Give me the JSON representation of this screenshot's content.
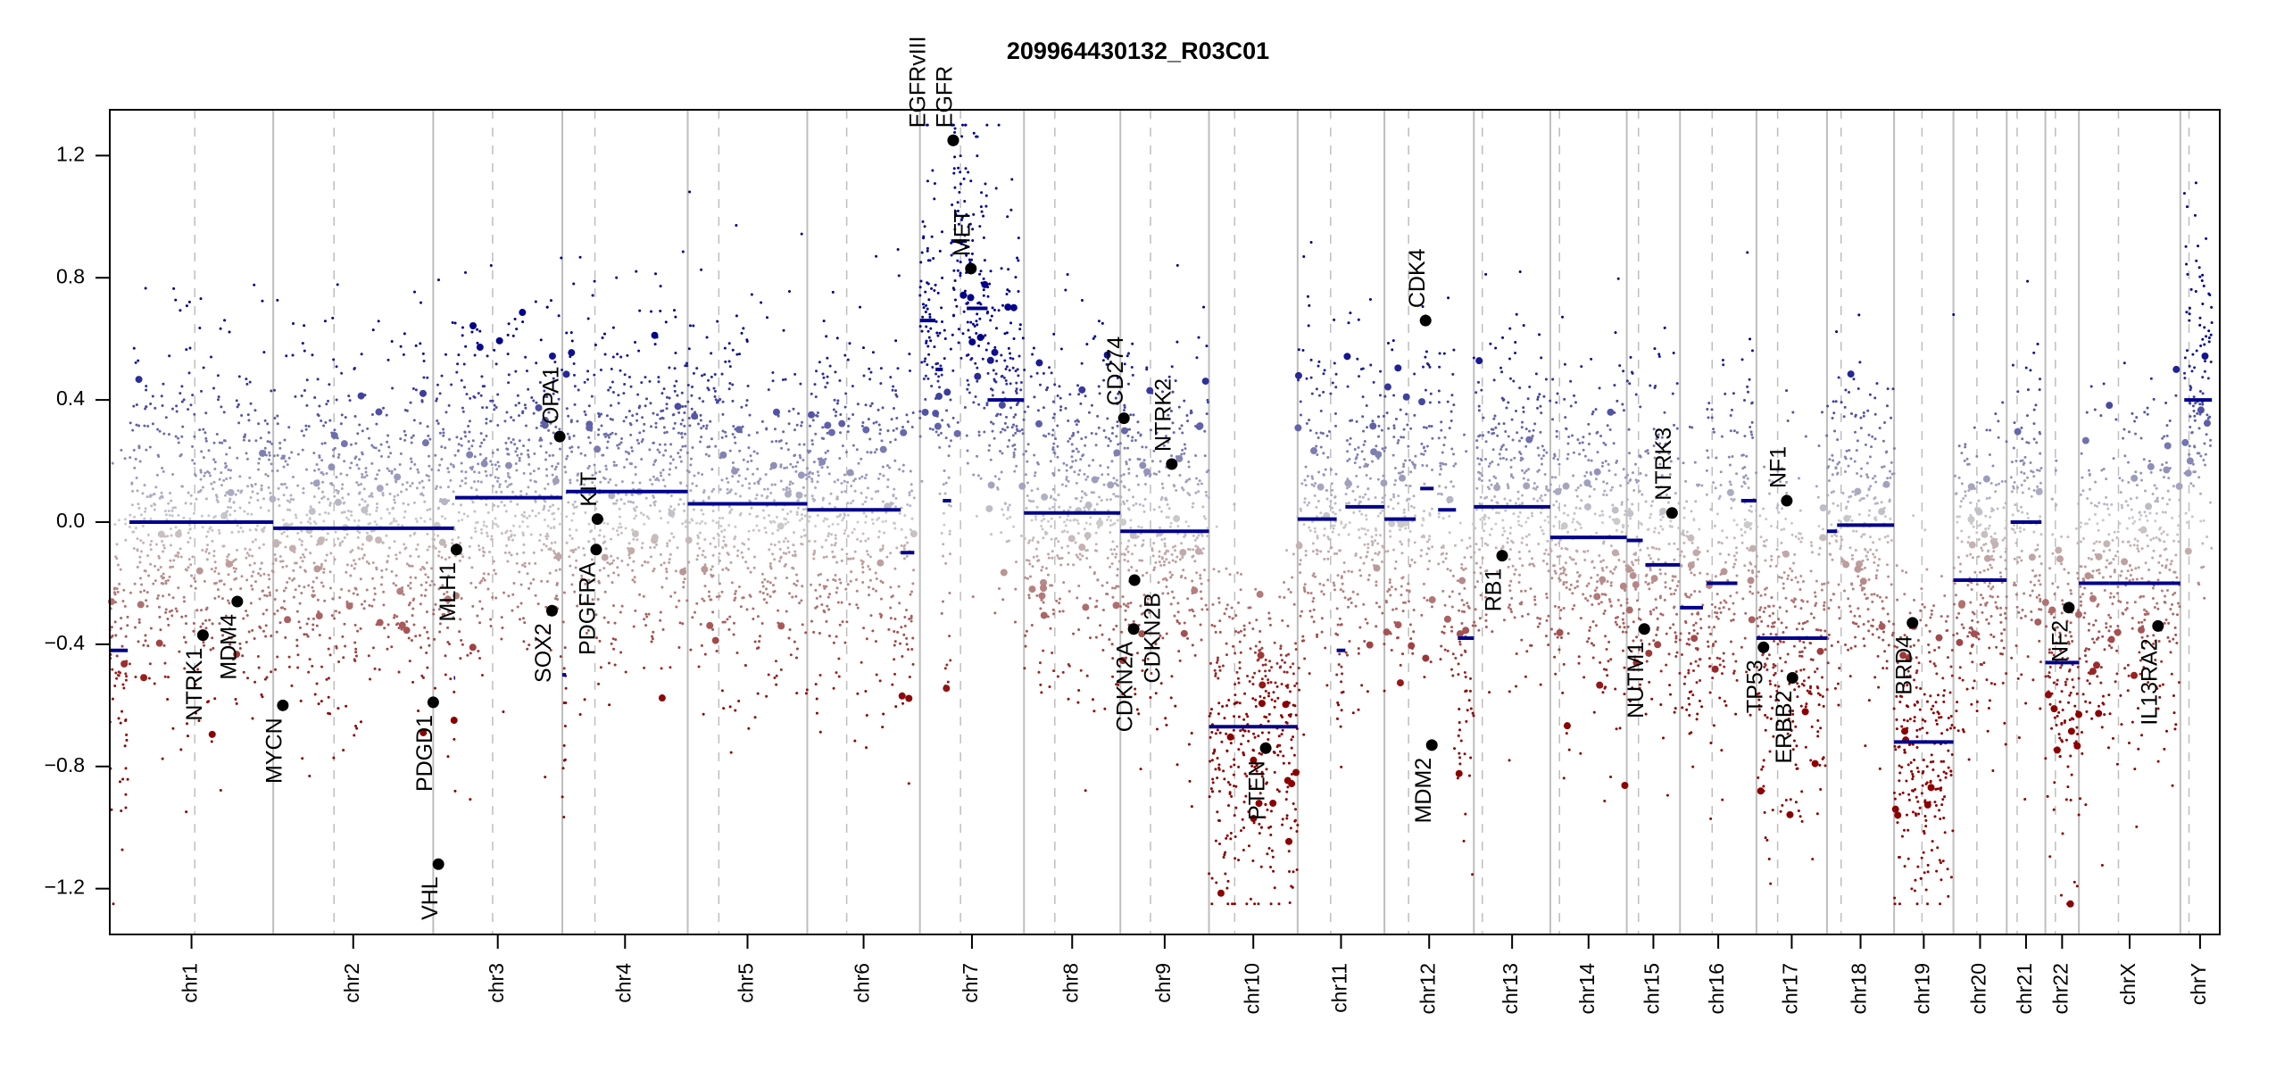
{
  "chart_data": {
    "type": "scatter",
    "title": "209964430132_R03C01",
    "xlabel": "",
    "ylabel": "",
    "ylim": [
      -1.35,
      1.35
    ],
    "yticks": [
      1.2,
      0.8,
      0.4,
      0.0,
      -0.4,
      -0.8,
      -1.2
    ],
    "ytick_labels": [
      "1.2",
      "0.8",
      "0.4",
      "0.0",
      "−0.4",
      "−0.8",
      "−1.2"
    ],
    "grid": false,
    "colors": {
      "gain": "#00008b",
      "loss": "#8b0000",
      "neutral": "#cccccc",
      "segment": "#00008b",
      "gene": "#000000",
      "boundary": "#bebebe"
    },
    "chromosomes": [
      {
        "name": "chr1",
        "rel_size": 0.0804,
        "centromere": 0.52
      },
      {
        "name": "chr2",
        "rel_size": 0.0787,
        "centromere": 0.38
      },
      {
        "name": "chr3",
        "rel_size": 0.0635,
        "centromere": 0.46
      },
      {
        "name": "chr4",
        "rel_size": 0.0617,
        "centromere": 0.26
      },
      {
        "name": "chr5",
        "rel_size": 0.0588,
        "centromere": 0.26
      },
      {
        "name": "chr6",
        "rel_size": 0.0554,
        "centromere": 0.35
      },
      {
        "name": "chr7",
        "rel_size": 0.0512,
        "centromere": 0.39
      },
      {
        "name": "chr8",
        "rel_size": 0.0474,
        "centromere": 0.32
      },
      {
        "name": "chr9",
        "rel_size": 0.0436,
        "centromere": 0.34
      },
      {
        "name": "chr10",
        "rel_size": 0.0436,
        "centromere": 0.29
      },
      {
        "name": "chr11",
        "rel_size": 0.0427,
        "centromere": 0.38
      },
      {
        "name": "chr12",
        "rel_size": 0.044,
        "centromere": 0.27
      },
      {
        "name": "chr13",
        "rel_size": 0.0376,
        "centromere": 0.11
      },
      {
        "name": "chr14",
        "rel_size": 0.0376,
        "centromere": 0.12
      },
      {
        "name": "chr15",
        "rel_size": 0.0262,
        "centromere": 0.22
      },
      {
        "name": "chr16",
        "rel_size": 0.0376,
        "centromere": 0.42
      },
      {
        "name": "chr17",
        "rel_size": 0.0347,
        "centromere": 0.3
      },
      {
        "name": "chr18",
        "rel_size": 0.033,
        "centromere": 0.21
      },
      {
        "name": "chr19",
        "rel_size": 0.0292,
        "centromere": 0.47
      },
      {
        "name": "chr20",
        "rel_size": 0.0262,
        "centromere": 0.44
      },
      {
        "name": "chr21",
        "rel_size": 0.019,
        "centromere": 0.27
      },
      {
        "name": "chr22",
        "rel_size": 0.0165,
        "centromere": 0.3
      },
      {
        "name": "chrX",
        "rel_size": 0.0499,
        "centromere": 0.39
      },
      {
        "name": "chrY",
        "rel_size": 0.0194,
        "centromere": 0.22
      }
    ],
    "segments": [
      {
        "chr": "chr1",
        "start": 0.0,
        "end": 0.11,
        "value": -0.42
      },
      {
        "chr": "chr1",
        "start": 0.12,
        "end": 1.0,
        "value": 0.0
      },
      {
        "chr": "chr2",
        "start": 0.0,
        "end": 1.0,
        "value": -0.02
      },
      {
        "chr": "chr3",
        "start": 0.0,
        "end": 0.16,
        "value": -0.02
      },
      {
        "chr": "chr3",
        "start": 0.16,
        "end": 0.17,
        "value": -0.51
      },
      {
        "chr": "chr3",
        "start": 0.17,
        "end": 1.0,
        "value": 0.08
      },
      {
        "chr": "chr4",
        "start": 0.0,
        "end": 0.03,
        "value": -0.5
      },
      {
        "chr": "chr4",
        "start": 0.03,
        "end": 1.0,
        "value": 0.1
      },
      {
        "chr": "chr5",
        "start": 0.0,
        "end": 1.0,
        "value": 0.06
      },
      {
        "chr": "chr6",
        "start": 0.0,
        "end": 0.83,
        "value": 0.04
      },
      {
        "chr": "chr6",
        "start": 0.83,
        "end": 0.95,
        "value": -0.1
      },
      {
        "chr": "chr7",
        "start": 0.0,
        "end": 0.15,
        "value": 0.66
      },
      {
        "chr": "chr7",
        "start": 0.15,
        "end": 0.22,
        "value": 0.5
      },
      {
        "chr": "chr7",
        "start": 0.22,
        "end": 0.3,
        "value": 0.07
      },
      {
        "chr": "chr7",
        "start": 0.3,
        "end": 0.45,
        "value": 0.92
      },
      {
        "chr": "chr7",
        "start": 0.45,
        "end": 0.65,
        "value": 0.7
      },
      {
        "chr": "chr7",
        "start": 0.65,
        "end": 1.0,
        "value": 0.4
      },
      {
        "chr": "chr8",
        "start": 0.0,
        "end": 1.0,
        "value": 0.03
      },
      {
        "chr": "chr9",
        "start": 0.0,
        "end": 1.0,
        "value": -0.03
      },
      {
        "chr": "chr10",
        "start": 0.0,
        "end": 1.0,
        "value": -0.67
      },
      {
        "chr": "chr11",
        "start": 0.0,
        "end": 0.45,
        "value": 0.01
      },
      {
        "chr": "chr11",
        "start": 0.45,
        "end": 0.55,
        "value": -0.42
      },
      {
        "chr": "chr11",
        "start": 0.55,
        "end": 1.0,
        "value": 0.05
      },
      {
        "chr": "chr12",
        "start": 0.0,
        "end": 0.35,
        "value": 0.01
      },
      {
        "chr": "chr12",
        "start": 0.4,
        "end": 0.55,
        "value": 0.11
      },
      {
        "chr": "chr12",
        "start": 0.6,
        "end": 0.8,
        "value": 0.04
      },
      {
        "chr": "chr12",
        "start": 0.82,
        "end": 1.0,
        "value": -0.38
      },
      {
        "chr": "chr13",
        "start": 0.0,
        "end": 1.0,
        "value": 0.05
      },
      {
        "chr": "chr14",
        "start": 0.0,
        "end": 1.0,
        "value": -0.05
      },
      {
        "chr": "chr15",
        "start": 0.0,
        "end": 0.3,
        "value": -0.06
      },
      {
        "chr": "chr15",
        "start": 0.35,
        "end": 1.0,
        "value": -0.14
      },
      {
        "chr": "chr16",
        "start": 0.0,
        "end": 0.3,
        "value": -0.28
      },
      {
        "chr": "chr16",
        "start": 0.35,
        "end": 0.75,
        "value": -0.2
      },
      {
        "chr": "chr16",
        "start": 0.8,
        "end": 1.0,
        "value": 0.07
      },
      {
        "chr": "chr17",
        "start": 0.0,
        "end": 1.0,
        "value": -0.38
      },
      {
        "chr": "chr18",
        "start": 0.0,
        "end": 0.15,
        "value": -0.03
      },
      {
        "chr": "chr18",
        "start": 0.15,
        "end": 1.0,
        "value": -0.01
      },
      {
        "chr": "chr19",
        "start": 0.0,
        "end": 1.0,
        "value": -0.72
      },
      {
        "chr": "chr20",
        "start": 0.0,
        "end": 1.0,
        "value": -0.19
      },
      {
        "chr": "chr21",
        "start": 0.1,
        "end": 0.9,
        "value": 0.0
      },
      {
        "chr": "chr22",
        "start": 0.0,
        "end": 1.0,
        "value": -0.46
      },
      {
        "chr": "chrX",
        "start": 0.0,
        "end": 0.3,
        "value": -0.2
      },
      {
        "chr": "chrX",
        "start": 0.3,
        "end": 1.0,
        "value": -0.2
      },
      {
        "chr": "chrY",
        "start": 0.1,
        "end": 0.8,
        "value": 0.4
      }
    ],
    "genes": [
      {
        "name": "NTRK1",
        "chr": "chr1",
        "pos": 0.57,
        "value": -0.37
      },
      {
        "name": "MDM4",
        "chr": "chr1",
        "pos": 0.78,
        "value": -0.26
      },
      {
        "name": "MYCN",
        "chr": "chr2",
        "pos": 0.06,
        "value": -0.6
      },
      {
        "name": "PDGD1",
        "chr": "chr3",
        "pos": 0.0,
        "value": -0.59
      },
      {
        "name": "VHL",
        "chr": "chr3",
        "pos": 0.04,
        "value": -1.12
      },
      {
        "name": "MLH1",
        "chr": "chr3",
        "pos": 0.18,
        "value": -0.09
      },
      {
        "name": "SOX2",
        "chr": "chr3",
        "pos": 0.92,
        "value": -0.29
      },
      {
        "name": "OPA1",
        "chr": "chr3",
        "pos": 0.98,
        "value": 0.28
      },
      {
        "name": "PDGFRA",
        "chr": "chr4",
        "pos": 0.27,
        "value": -0.09
      },
      {
        "name": "KIT",
        "chr": "chr4",
        "pos": 0.28,
        "value": 0.01
      },
      {
        "name": "EGFR",
        "chr": "chr7",
        "pos": 0.32,
        "value": 1.25
      },
      {
        "name": "EGFRvIII",
        "chr": "chr7",
        "pos": 0.32,
        "value": 1.25
      },
      {
        "name": "MET",
        "chr": "chr7",
        "pos": 0.49,
        "value": 0.83
      },
      {
        "name": "CD274",
        "chr": "chr9",
        "pos": 0.04,
        "value": 0.34
      },
      {
        "name": "CDKN2A",
        "chr": "chr9",
        "pos": 0.15,
        "value": -0.35
      },
      {
        "name": "CDKN2B",
        "chr": "chr9",
        "pos": 0.16,
        "value": -0.19
      },
      {
        "name": "NTRK2",
        "chr": "chr9",
        "pos": 0.58,
        "value": 0.19
      },
      {
        "name": "PTEN",
        "chr": "chr10",
        "pos": 0.64,
        "value": -0.74
      },
      {
        "name": "CDK4",
        "chr": "chr12",
        "pos": 0.46,
        "value": 0.66
      },
      {
        "name": "MDM2",
        "chr": "chr12",
        "pos": 0.53,
        "value": -0.73
      },
      {
        "name": "RB1",
        "chr": "chr13",
        "pos": 0.37,
        "value": -0.11
      },
      {
        "name": "NUTM1",
        "chr": "chr15",
        "pos": 0.33,
        "value": -0.35
      },
      {
        "name": "NTRK3",
        "chr": "chr15",
        "pos": 0.85,
        "value": 0.03
      },
      {
        "name": "TP53",
        "chr": "chr17",
        "pos": 0.1,
        "value": -0.41
      },
      {
        "name": "NF1",
        "chr": "chr17",
        "pos": 0.43,
        "value": 0.07
      },
      {
        "name": "ERBB2",
        "chr": "chr17",
        "pos": 0.51,
        "value": -0.51
      },
      {
        "name": "BRD4",
        "chr": "chr19",
        "pos": 0.31,
        "value": -0.33
      },
      {
        "name": "NF2",
        "chr": "chr22",
        "pos": 0.7,
        "value": -0.28
      },
      {
        "name": "IL13RA2",
        "chr": "chrX",
        "pos": 0.78,
        "value": -0.34
      }
    ]
  }
}
